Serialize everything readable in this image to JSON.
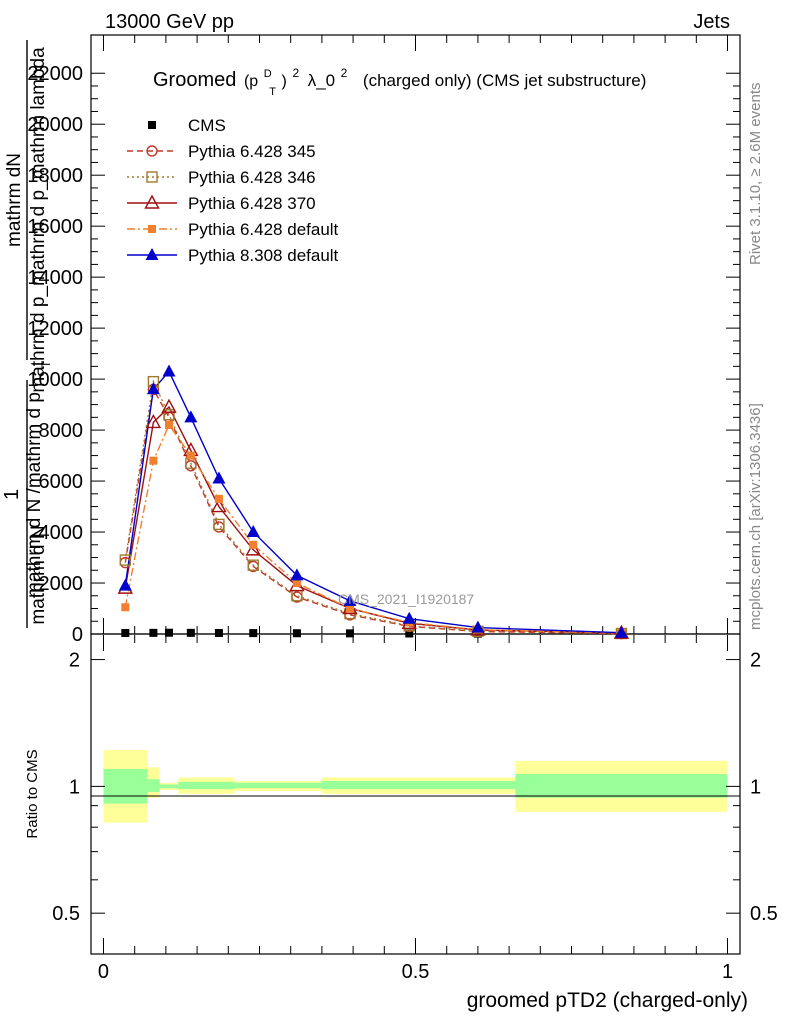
{
  "header": {
    "left": "13000 GeV pp",
    "right": "Jets"
  },
  "title": {
    "prefix": "Groomed",
    "p_main": "(p",
    "p_sup": "D",
    "p_sub": "T",
    "p_close": ")",
    "pow1": "2",
    "lambda": "λ_0",
    "pow2": "2",
    "suffix": "(charged only) (CMS jet substructure)"
  },
  "side_labels": {
    "rivet": "Rivet 3.1.10, ≥ 2.6M events",
    "mcplots": "mcplots.cern.ch [arXiv:1306.3436]"
  },
  "watermark": "CMS_2021_I1920187",
  "ylabel": {
    "one": "1",
    "top_numerator": "mathrm dN",
    "top_denominator": "mathrm d p_mathrm d p_mathrm lambda",
    "bottom_numerator": "mathrm d N /mathrm d p",
    "bottom_sub": "T",
    "bottom_denominator": "mathrm d N"
  },
  "ratio_ylabel": "Ratio to CMS",
  "chart_data": [
    {
      "type": "line",
      "xlabel": "groomed pTD2 (charged-only)",
      "xlim": [
        -0.02,
        1.02
      ],
      "ylim": [
        0,
        23500
      ],
      "yticks": [
        0,
        2000,
        4000,
        6000,
        8000,
        10000,
        12000,
        14000,
        16000,
        18000,
        20000,
        22000
      ],
      "ytick_labels": [
        "0",
        "2000",
        "4000",
        "6000",
        "8000",
        "10000",
        "12000",
        "14000",
        "16000",
        "18000",
        "20000",
        "22000"
      ],
      "legend_position": "top-left",
      "series": [
        {
          "name": "CMS",
          "color": "#000000",
          "marker": "square-filled",
          "line": "none",
          "x": [
            0.035,
            0.08,
            0.105,
            0.14,
            0.185,
            0.24,
            0.31,
            0.395,
            0.49,
            0.6,
            0.83
          ],
          "y": [
            40,
            45,
            50,
            45,
            40,
            35,
            30,
            25,
            20,
            15,
            10
          ]
        },
        {
          "name": "Pythia 6.428 345",
          "color": "#c0392b",
          "marker": "circle-open",
          "line": "dashed",
          "x": [
            0.035,
            0.08,
            0.105,
            0.14,
            0.185,
            0.24,
            0.31,
            0.395,
            0.49,
            0.6,
            0.83
          ],
          "y": [
            2800,
            9600,
            8500,
            6600,
            4200,
            2650,
            1450,
            750,
            300,
            100,
            15
          ]
        },
        {
          "name": "Pythia 6.428 346",
          "color": "#a07a30",
          "marker": "square-open",
          "line": "dotted",
          "x": [
            0.035,
            0.08,
            0.105,
            0.14,
            0.185,
            0.24,
            0.31,
            0.395,
            0.49,
            0.6,
            0.83
          ],
          "y": [
            2900,
            9900,
            8600,
            6700,
            4300,
            2700,
            1500,
            800,
            320,
            110,
            20
          ]
        },
        {
          "name": "Pythia 6.428 370",
          "color": "#a01010",
          "marker": "triangle-open",
          "line": "solid",
          "x": [
            0.035,
            0.08,
            0.105,
            0.14,
            0.185,
            0.24,
            0.31,
            0.395,
            0.49,
            0.6,
            0.83
          ],
          "y": [
            1800,
            8300,
            8900,
            7200,
            5000,
            3300,
            1900,
            1000,
            420,
            160,
            30
          ]
        },
        {
          "name": "Pythia 6.428 default",
          "color": "#f07f30",
          "marker": "square-filled",
          "line": "dashdot",
          "x": [
            0.035,
            0.08,
            0.105,
            0.14,
            0.185,
            0.24,
            0.31,
            0.395,
            0.49,
            0.6,
            0.83
          ],
          "y": [
            1050,
            6800,
            8200,
            7000,
            5300,
            3500,
            2000,
            1000,
            450,
            170,
            35
          ]
        },
        {
          "name": "Pythia 8.308 default",
          "color": "#0000cc",
          "marker": "triangle-filled",
          "line": "solid",
          "x": [
            0.035,
            0.08,
            0.105,
            0.14,
            0.185,
            0.24,
            0.31,
            0.395,
            0.49,
            0.6,
            0.83
          ],
          "y": [
            1900,
            9600,
            10300,
            8500,
            6100,
            4000,
            2300,
            1300,
            600,
            250,
            50
          ]
        }
      ]
    },
    {
      "type": "area",
      "ylabel": "Ratio to CMS",
      "xlim": [
        -0.02,
        1.02
      ],
      "ylim": [
        0.4,
        2.3
      ],
      "yscale": "log",
      "yticks": [
        0.5,
        1,
        2
      ],
      "ytick_labels": [
        "0.5",
        "1",
        "2"
      ],
      "xticks": [
        0,
        0.5,
        1
      ],
      "xtick_labels": [
        "0",
        "0.5",
        "1"
      ],
      "bins": [
        {
          "lo": 0.0,
          "hi": 0.07,
          "stat": [
            0.91,
            1.1
          ],
          "total": [
            0.82,
            1.22
          ]
        },
        {
          "lo": 0.07,
          "hi": 0.09,
          "stat": [
            0.97,
            1.04
          ],
          "total": [
            0.94,
            1.11
          ]
        },
        {
          "lo": 0.09,
          "hi": 0.12,
          "stat": [
            0.99,
            1.01
          ],
          "total": [
            0.98,
            1.02
          ]
        },
        {
          "lo": 0.12,
          "hi": 0.21,
          "stat": [
            0.985,
            1.025
          ],
          "total": [
            0.96,
            1.05
          ]
        },
        {
          "lo": 0.21,
          "hi": 0.35,
          "stat": [
            0.99,
            1.02
          ],
          "total": [
            0.975,
            1.03
          ]
        },
        {
          "lo": 0.35,
          "hi": 0.66,
          "stat": [
            0.985,
            1.03
          ],
          "total": [
            0.96,
            1.05
          ]
        },
        {
          "lo": 0.66,
          "hi": 1.0,
          "stat": [
            0.94,
            1.07
          ],
          "total": [
            0.87,
            1.15
          ]
        }
      ]
    }
  ]
}
